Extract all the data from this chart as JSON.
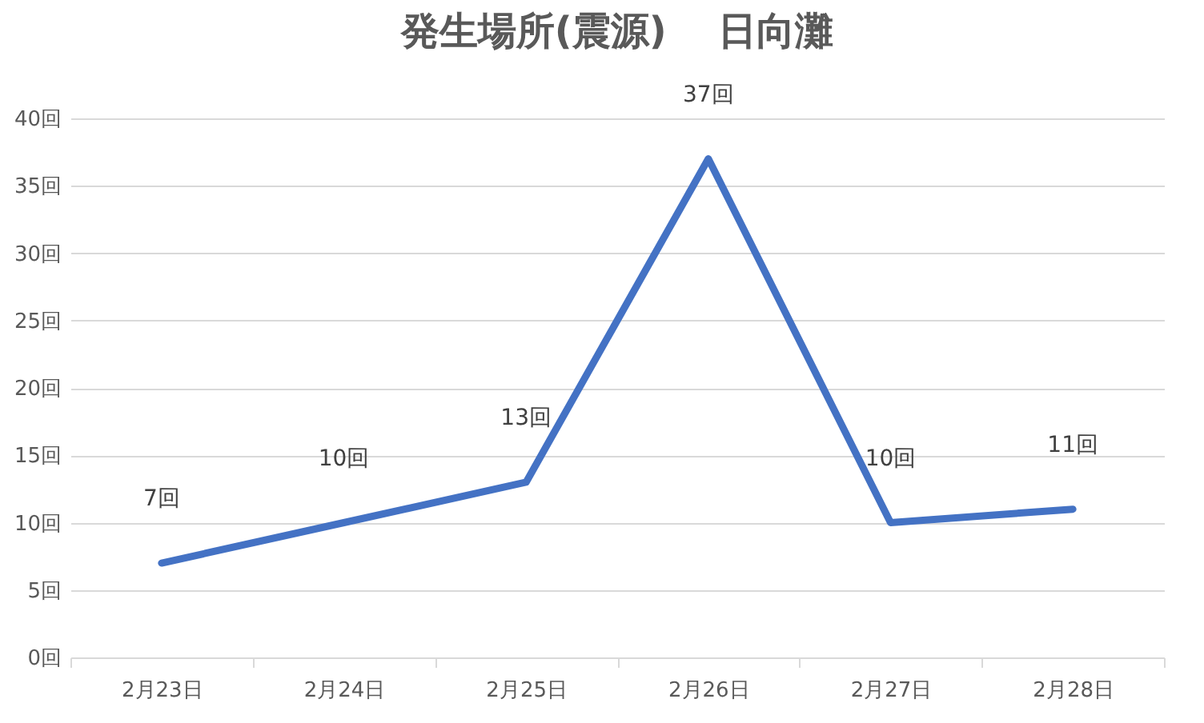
{
  "chart_data": {
    "type": "line",
    "title": "発生場所(震源)　 日向灘",
    "categories": [
      "2月23日",
      "2月24日",
      "2月25日",
      "2月26日",
      "2月27日",
      "2月28日"
    ],
    "series": [
      {
        "color": "#4472c4",
        "values": [
          7,
          10,
          13,
          37,
          10,
          11
        ],
        "value_labels": [
          "7回",
          "10回",
          "13回",
          "37回",
          "10回",
          "11回"
        ]
      }
    ],
    "ylim": [
      0,
      40
    ],
    "yticks": [
      {
        "value": 0,
        "label": "0回"
      },
      {
        "value": 5,
        "label": "5回"
      },
      {
        "value": 10,
        "label": "10回"
      },
      {
        "value": 15,
        "label": "15回"
      },
      {
        "value": 20,
        "label": "20回"
      },
      {
        "value": 25,
        "label": "25回"
      },
      {
        "value": 30,
        "label": "30回"
      },
      {
        "value": 35,
        "label": "35回"
      },
      {
        "value": 40,
        "label": "40回"
      }
    ],
    "grid": "y",
    "legend": false,
    "marker": "none",
    "line_style": "solid"
  }
}
